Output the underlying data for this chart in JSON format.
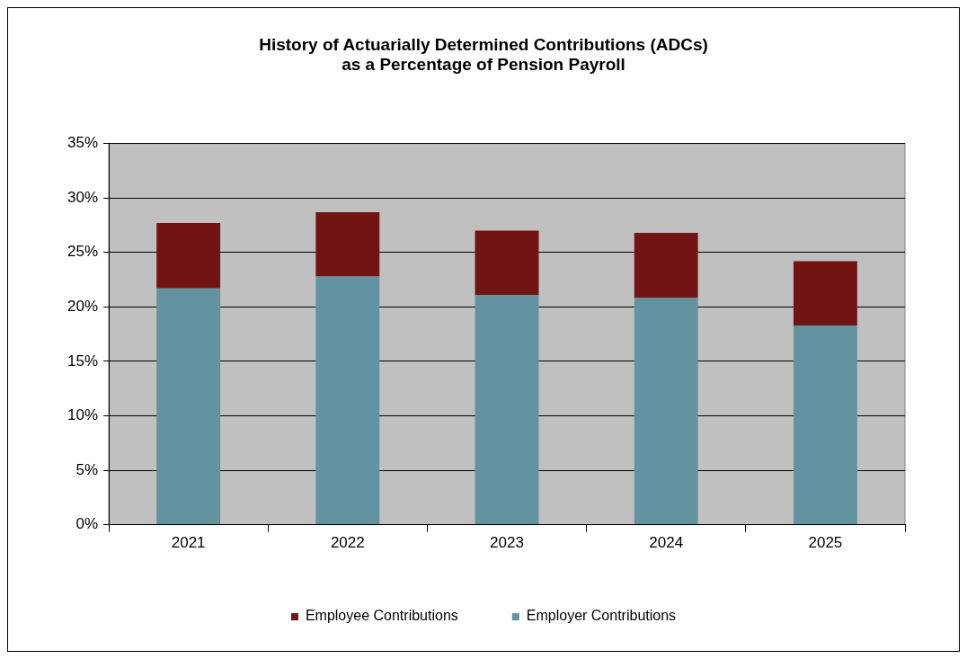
{
  "chart_data": {
    "type": "bar",
    "title": "History of Actuarially Determined Contributions (ADCs)\nas a Percentage of Pension Payroll",
    "categories": [
      "2021",
      "2022",
      "2023",
      "2024",
      "2025"
    ],
    "stacked": true,
    "series": [
      {
        "name": "Employer Contributions",
        "color": "#6393a0",
        "values": [
          21.7,
          22.8,
          21.1,
          20.8,
          18.3
        ]
      },
      {
        "name": "Employee Contributions",
        "color": "#731414",
        "values": [
          6.0,
          5.9,
          5.9,
          6.0,
          5.9
        ]
      }
    ],
    "ylim": [
      0,
      35
    ],
    "yticks": [
      {
        "value": 0,
        "label": "0%"
      },
      {
        "value": 5,
        "label": "5%"
      },
      {
        "value": 10,
        "label": "10%"
      },
      {
        "value": 15,
        "label": "15%"
      },
      {
        "value": 20,
        "label": "20%"
      },
      {
        "value": 25,
        "label": "25%"
      },
      {
        "value": 30,
        "label": "30%"
      },
      {
        "value": 35,
        "label": "35%"
      }
    ],
    "grid": "y",
    "legend": "bottom"
  }
}
